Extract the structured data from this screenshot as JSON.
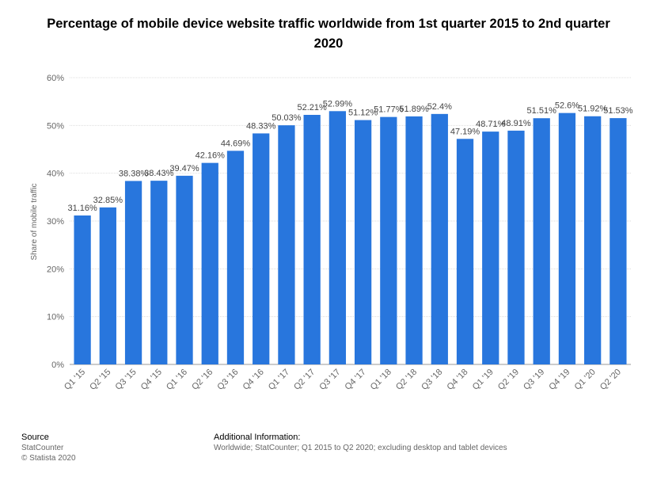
{
  "chart_data": {
    "type": "bar",
    "title": "Percentage of mobile device website traffic worldwide from 1st quarter 2015 to 2nd quarter 2020",
    "xlabel": "",
    "ylabel": "Share of mobile traffic",
    "ylim": [
      0,
      60
    ],
    "yticks": [
      "0%",
      "10%",
      "20%",
      "30%",
      "40%",
      "50%",
      "60%"
    ],
    "grid": true,
    "categories": [
      "Q1 '15",
      "Q2 '15",
      "Q3 '15",
      "Q4 '15",
      "Q1 '16",
      "Q2 '16",
      "Q3 '16",
      "Q4 '16",
      "Q1 '17",
      "Q2 '17",
      "Q3 '17",
      "Q4 '17",
      "Q1 '18",
      "Q2 '18",
      "Q3 '18",
      "Q4 '18",
      "Q1 '19",
      "Q2 '19",
      "Q3 '19",
      "Q4 '19",
      "Q1 '20",
      "Q2 '20"
    ],
    "values": [
      31.16,
      32.85,
      38.38,
      38.43,
      39.47,
      42.16,
      44.69,
      48.33,
      50.03,
      52.21,
      52.99,
      51.12,
      51.77,
      51.89,
      52.4,
      47.19,
      48.71,
      48.91,
      51.51,
      52.6,
      51.92,
      51.53
    ],
    "data_labels": [
      "31.16%",
      "32.85%",
      "38.38%",
      "38.43%",
      "39.47%",
      "42.16%",
      "44.69%",
      "48.33%",
      "50.03%",
      "52.21%",
      "52.99%",
      "51.12%",
      "51.77%",
      "51.89%",
      "52.4%",
      "47.19%",
      "48.71%",
      "48.91%",
      "51.51%",
      "52.6%",
      "51.92%",
      "51.53%"
    ],
    "bar_color": "#2876dd"
  },
  "footer": {
    "source_heading": "Source",
    "source_name": "StatCounter",
    "copyright": "© Statista 2020",
    "info_heading": "Additional Information:",
    "info_text": "Worldwide; StatCounter; Q1 2015 to Q2 2020; excluding desktop and tablet devices"
  }
}
